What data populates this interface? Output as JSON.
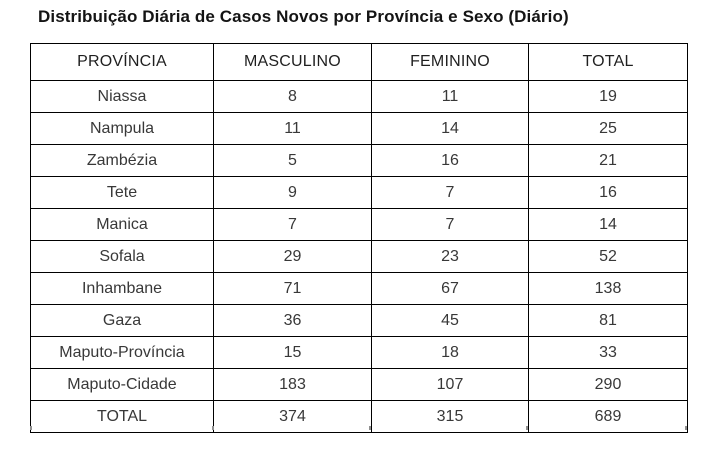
{
  "title": "Distribuição Diária de Casos Novos por Província e Sexo (Diário)",
  "chart_data": {
    "type": "table",
    "title": "Distribuição Diária de Casos Novos por Província e Sexo (Diário)",
    "columns": [
      "PROVÍNCIA",
      "MASCULINO",
      "FEMININO",
      "TOTAL"
    ],
    "row_keys": [
      "provincia",
      "masculino",
      "feminino",
      "total"
    ],
    "rows": [
      [
        "Niassa",
        8,
        11,
        19
      ],
      [
        "Nampula",
        11,
        14,
        25
      ],
      [
        "Zambézia",
        5,
        16,
        21
      ],
      [
        "Tete",
        9,
        7,
        16
      ],
      [
        "Manica",
        7,
        7,
        14
      ],
      [
        "Sofala",
        29,
        23,
        52
      ],
      [
        "Inhambane",
        71,
        67,
        138
      ],
      [
        "Gaza",
        36,
        45,
        81
      ],
      [
        "Maputo-Província",
        15,
        18,
        33
      ],
      [
        "Maputo-Cidade",
        183,
        107,
        290
      ],
      [
        "TOTAL",
        374,
        315,
        689
      ]
    ],
    "totals": {
      "masculino": 374,
      "feminino": 315,
      "total": 689
    },
    "colors": {
      "border": "#000000",
      "header_text": "#1f1f1f",
      "body_text": "#383838",
      "title_text": "#141414",
      "background": "#ffffff"
    }
  }
}
